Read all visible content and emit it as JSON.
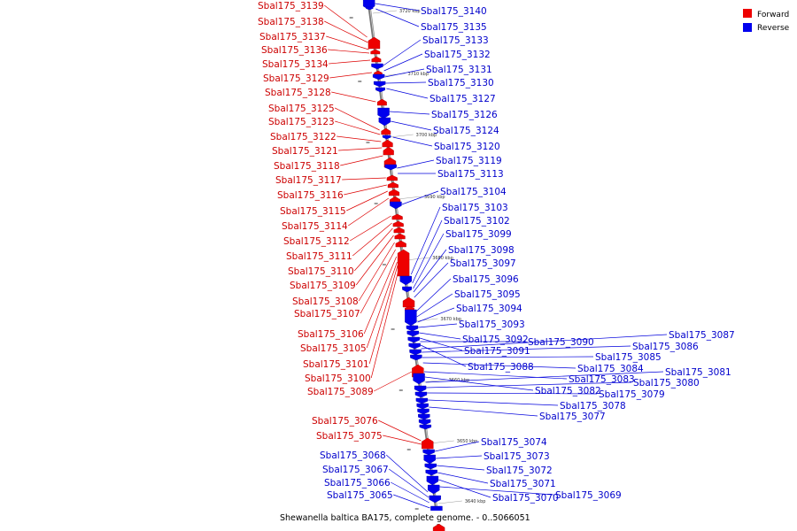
{
  "caption": "Shewanella baltica BA175, complete genome. - 0..5066051",
  "legend": [
    {
      "label": "Forward",
      "color": "#ee0000"
    },
    {
      "label": "Reverse",
      "color": "#0000ee"
    }
  ],
  "colors": {
    "forward": "#ee0000",
    "reverse": "#0000ee",
    "backbone": "#888888",
    "forward_label": "#cc0000",
    "reverse_label": "#0000cc"
  },
  "ticks": [
    "3720 kbp",
    "3710 kbp",
    "3700 kbp",
    "3690 kbp",
    "3680 kbp",
    "3670 kbp",
    "3660 kbp",
    "3650 kbp",
    "3640 kbp"
  ],
  "forward_genes": [
    "Sbal175_3139",
    "Sbal175_3138",
    "Sbal175_3137",
    "Sbal175_3136",
    "Sbal175_3134",
    "Sbal175_3129",
    "Sbal175_3128",
    "Sbal175_3125",
    "Sbal175_3123",
    "Sbal175_3122",
    "Sbal175_3121",
    "Sbal175_3118",
    "Sbal175_3117",
    "Sbal175_3116",
    "Sbal175_3115",
    "Sbal175_3114",
    "Sbal175_3112",
    "Sbal175_3111",
    "Sbal175_3110",
    "Sbal175_3109",
    "Sbal175_3108",
    "Sbal175_3107",
    "Sbal175_3106",
    "Sbal175_3105",
    "Sbal175_3101",
    "Sbal175_3100",
    "Sbal175_3089",
    "Sbal175_3076",
    "Sbal175_3075"
  ],
  "reverse_genes": [
    "Sbal175_3140",
    "Sbal175_3135",
    "Sbal175_3133",
    "Sbal175_3132",
    "Sbal175_3131",
    "Sbal175_3130",
    "Sbal175_3127",
    "Sbal175_3126",
    "Sbal175_3124",
    "Sbal175_3120",
    "Sbal175_3119",
    "Sbal175_3113",
    "Sbal175_3104",
    "Sbal175_3103",
    "Sbal175_3102",
    "Sbal175_3099",
    "Sbal175_3098",
    "Sbal175_3097",
    "Sbal175_3096",
    "Sbal175_3095",
    "Sbal175_3094",
    "Sbal175_3093",
    "Sbal175_3092",
    "Sbal175_3091",
    "Sbal175_3090",
    "Sbal175_3088",
    "Sbal175_3087",
    "Sbal175_3086",
    "Sbal175_3085",
    "Sbal175_3084",
    "Sbal175_3083",
    "Sbal175_3082",
    "Sbal175_3081",
    "Sbal175_3080",
    "Sbal175_3079",
    "Sbal175_3078",
    "Sbal175_3077",
    "Sbal175_3074",
    "Sbal175_3073",
    "Sbal175_3072",
    "Sbal175_3071",
    "Sbal175_3070",
    "Sbal175_3069",
    "Sbal175_3068",
    "Sbal175_3067",
    "Sbal175_3066",
    "Sbal175_3065"
  ]
}
